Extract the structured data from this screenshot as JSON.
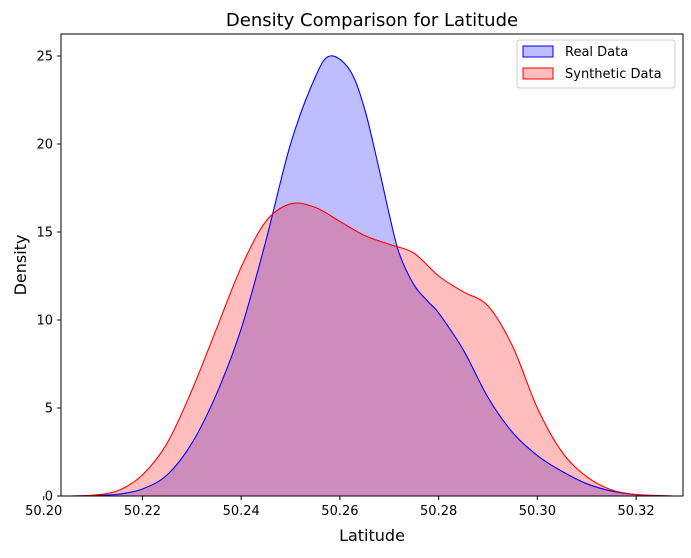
{
  "chart_data": {
    "type": "area",
    "title": "Density Comparison for Latitude",
    "xlabel": "Latitude",
    "ylabel": "Density",
    "xlim": [
      50.2035,
      50.3295
    ],
    "ylim": [
      0,
      26.25
    ],
    "xticks": [
      50.2,
      50.22,
      50.24,
      50.26,
      50.28,
      50.3,
      50.32
    ],
    "xtick_labels": [
      "50.20",
      "50.22",
      "50.24",
      "50.26",
      "50.28",
      "50.30",
      "50.32"
    ],
    "yticks": [
      0,
      5,
      10,
      15,
      20,
      25
    ],
    "ytick_labels": [
      "0",
      "5",
      "10",
      "15",
      "20",
      "25"
    ],
    "grid": false,
    "legend_position": "top-right",
    "series": [
      {
        "name": "Real Data",
        "color": "#0000ff",
        "fill_color": "#0000ff",
        "fill_opacity": 0.26,
        "points": [
          [
            50.2055,
            0.0
          ],
          [
            50.21,
            0.03
          ],
          [
            50.215,
            0.1
          ],
          [
            50.22,
            0.4
          ],
          [
            50.225,
            1.2
          ],
          [
            50.23,
            3.0
          ],
          [
            50.235,
            5.8
          ],
          [
            50.24,
            9.5
          ],
          [
            50.245,
            14.5
          ],
          [
            50.25,
            20.0
          ],
          [
            50.255,
            23.8
          ],
          [
            50.258,
            25.0
          ],
          [
            50.262,
            24.2
          ],
          [
            50.265,
            22.0
          ],
          [
            50.268,
            18.5
          ],
          [
            50.27,
            16.0
          ],
          [
            50.272,
            13.8
          ],
          [
            50.275,
            12.0
          ],
          [
            50.278,
            11.0
          ],
          [
            50.28,
            10.4
          ],
          [
            50.285,
            8.3
          ],
          [
            50.29,
            5.6
          ],
          [
            50.295,
            3.6
          ],
          [
            50.3,
            2.3
          ],
          [
            50.305,
            1.4
          ],
          [
            50.31,
            0.7
          ],
          [
            50.315,
            0.28
          ],
          [
            50.32,
            0.08
          ],
          [
            50.325,
            0.02
          ],
          [
            50.3275,
            0.0
          ]
        ]
      },
      {
        "name": "Synthetic Data",
        "color": "#ff0000",
        "fill_color": "#ff0000",
        "fill_opacity": 0.26,
        "points": [
          [
            50.2055,
            0.0
          ],
          [
            50.21,
            0.05
          ],
          [
            50.215,
            0.3
          ],
          [
            50.22,
            1.2
          ],
          [
            50.225,
            3.0
          ],
          [
            50.23,
            6.0
          ],
          [
            50.235,
            9.5
          ],
          [
            50.24,
            13.0
          ],
          [
            50.245,
            15.6
          ],
          [
            50.25,
            16.6
          ],
          [
            50.255,
            16.4
          ],
          [
            50.26,
            15.6
          ],
          [
            50.265,
            14.8
          ],
          [
            50.27,
            14.3
          ],
          [
            50.275,
            13.8
          ],
          [
            50.28,
            12.5
          ],
          [
            50.285,
            11.6
          ],
          [
            50.29,
            10.8
          ],
          [
            50.295,
            8.5
          ],
          [
            50.3,
            5.0
          ],
          [
            50.305,
            2.5
          ],
          [
            50.31,
            1.1
          ],
          [
            50.315,
            0.35
          ],
          [
            50.32,
            0.08
          ],
          [
            50.325,
            0.01
          ],
          [
            50.3275,
            0.0
          ]
        ]
      }
    ]
  }
}
